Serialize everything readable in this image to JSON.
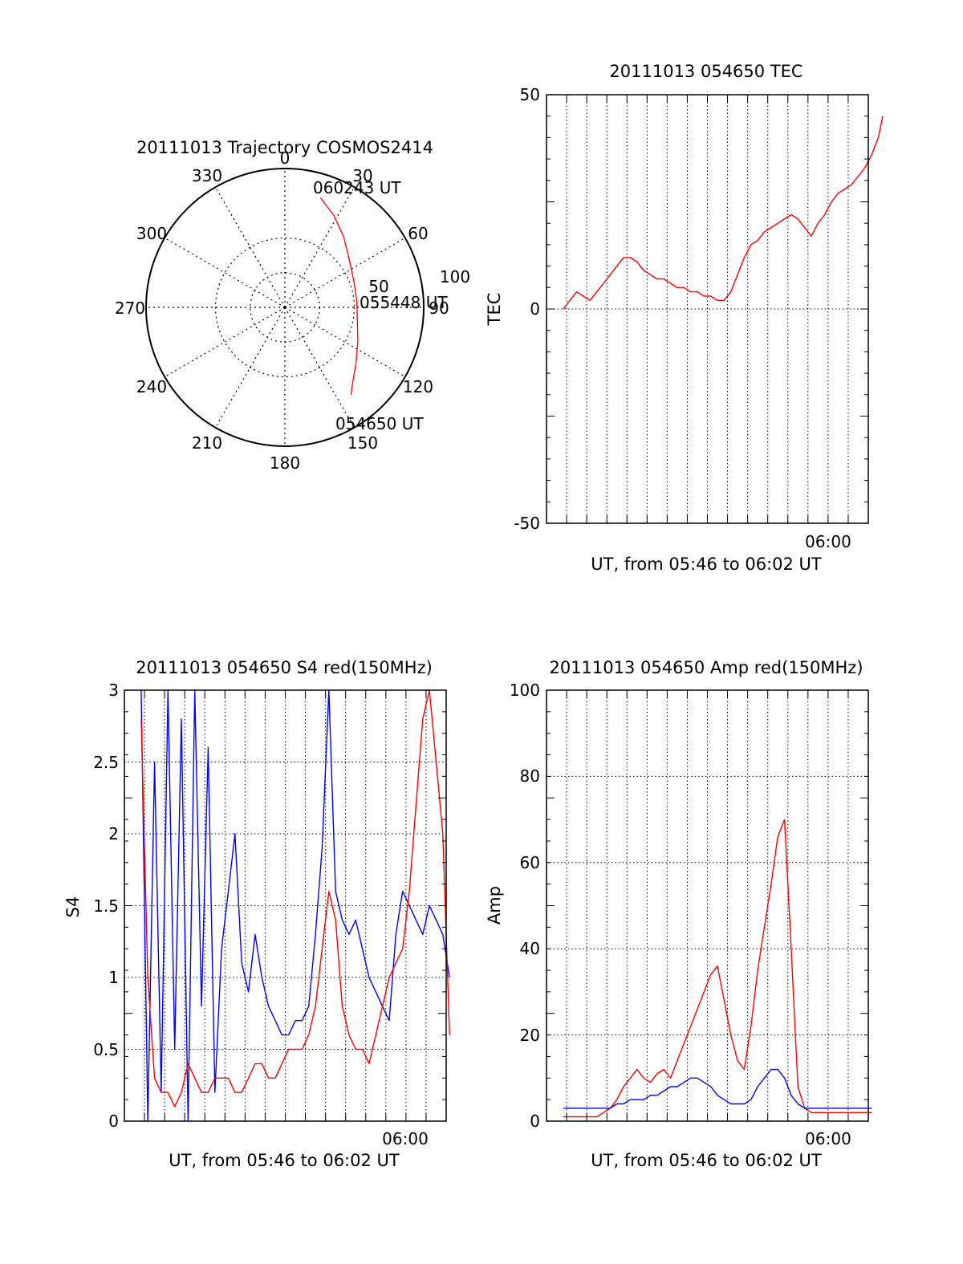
{
  "colors": {
    "red_series": "#ff0000",
    "blue_series": "#0000ff",
    "axes": "#000000",
    "grid": "#000000"
  },
  "chart_data": [
    {
      "type": "polar",
      "title": "20111013 Trajectory COSMOS2414",
      "theta_labels": [
        "0",
        "30",
        "60",
        "90",
        "120",
        "150",
        "180",
        "210",
        "240",
        "270",
        "300",
        "330"
      ],
      "radius_labels": [
        "50",
        "100"
      ],
      "grid": true,
      "annotations": [
        "060243 UT",
        "055448 UT",
        "054650 UT"
      ],
      "series": [
        {
          "color": "red",
          "points": [
            {
              "azimuth": 18,
              "radius": 83
            },
            {
              "azimuth": 28,
              "radius": 75
            },
            {
              "azimuth": 40,
              "radius": 66
            },
            {
              "azimuth": 55,
              "radius": 57
            },
            {
              "azimuth": 70,
              "radius": 53
            },
            {
              "azimuth": 85,
              "radius": 52
            },
            {
              "azimuth": 100,
              "radius": 53
            },
            {
              "azimuth": 115,
              "radius": 58
            },
            {
              "azimuth": 128,
              "radius": 65
            },
            {
              "azimuth": 138,
              "radius": 73
            },
            {
              "azimuth": 143,
              "radius": 79
            }
          ]
        }
      ]
    },
    {
      "type": "line",
      "title": "20111013 054650 TEC",
      "xlabel": "UT, from 05:46 to 06:02 UT",
      "ylabel": "TEC",
      "xlim": [
        "05:46",
        "06:02"
      ],
      "ylim": [
        -50,
        50
      ],
      "yticks": [
        "50",
        "0",
        "-50"
      ],
      "xticks": [
        "06:00"
      ],
      "grid": true,
      "series": [
        {
          "color": "red",
          "x": [
            "05:46:50",
            "05:47:10",
            "05:47:30",
            "05:47:50",
            "05:48:10",
            "05:48:30",
            "05:48:50",
            "05:49:10",
            "05:49:30",
            "05:49:50",
            "05:50:10",
            "05:50:30",
            "05:50:50",
            "05:51:10",
            "05:51:30",
            "05:51:50",
            "05:52:10",
            "05:52:30",
            "05:52:50",
            "05:53:10",
            "05:53:30",
            "05:53:50",
            "05:54:10",
            "05:54:30",
            "05:54:50",
            "05:55:10",
            "05:55:30",
            "05:55:50",
            "05:56:10",
            "05:56:30",
            "05:56:50",
            "05:57:10",
            "05:57:30",
            "05:57:50",
            "05:58:10",
            "05:58:30",
            "05:58:50",
            "05:59:10",
            "05:59:30",
            "05:59:50",
            "06:00:10",
            "06:00:30",
            "06:00:50",
            "06:01:10",
            "06:01:30",
            "06:01:50",
            "06:02:10",
            "06:02:30",
            "06:02:43"
          ],
          "y": [
            0,
            2,
            4,
            3,
            2,
            4,
            6,
            8,
            10,
            12,
            12,
            11,
            9,
            8,
            7,
            7,
            6,
            5,
            5,
            4,
            4,
            3,
            3,
            2,
            2,
            4,
            8,
            12,
            15,
            16,
            18,
            19,
            20,
            21,
            22,
            21,
            19,
            17,
            20,
            22,
            25,
            27,
            28,
            29,
            31,
            33,
            36,
            40,
            45
          ]
        }
      ]
    },
    {
      "type": "line",
      "title": "20111013 054650 S4 red(150MHz)",
      "xlabel": "UT, from 05:46 to 06:02 UT",
      "ylabel": "S4",
      "xlim": [
        "05:46",
        "06:02"
      ],
      "ylim": [
        0,
        3
      ],
      "yticks": [
        "0",
        "0.5",
        "1",
        "1.5",
        "2",
        "2.5",
        "3"
      ],
      "xticks": [
        "06:00"
      ],
      "grid": true,
      "series": [
        {
          "color": "blue",
          "x": [
            "05:46:50",
            "05:47:10",
            "05:47:30",
            "05:47:50",
            "05:48:10",
            "05:48:30",
            "05:48:50",
            "05:49:10",
            "05:49:30",
            "05:49:50",
            "05:50:10",
            "05:50:30",
            "05:50:50",
            "05:51:10",
            "05:51:30",
            "05:51:50",
            "05:52:10",
            "05:52:30",
            "05:52:50",
            "05:53:10",
            "05:53:30",
            "05:53:50",
            "05:54:10",
            "05:54:30",
            "05:54:50",
            "05:55:10",
            "05:55:30",
            "05:55:50",
            "05:56:10",
            "05:56:30",
            "05:56:50",
            "05:57:10",
            "05:57:30",
            "05:57:50",
            "05:58:10",
            "05:58:30",
            "05:58:50",
            "05:59:10",
            "05:59:30",
            "05:59:50",
            "06:00:10",
            "06:00:30",
            "06:00:50",
            "06:01:10",
            "06:01:30",
            "06:01:50",
            "06:02:10"
          ],
          "y": [
            3.0,
            0,
            2.5,
            0.2,
            3.0,
            0.5,
            2.8,
            0,
            3.0,
            0.8,
            2.6,
            0.2,
            1.2,
            1.6,
            2.0,
            1.1,
            0.9,
            1.3,
            1.0,
            0.8,
            0.7,
            0.6,
            0.6,
            0.7,
            0.7,
            0.8,
            1.3,
            1.9,
            3.0,
            1.6,
            1.4,
            1.3,
            1.4,
            1.2,
            1.0,
            0.9,
            0.8,
            0.7,
            1.3,
            1.6,
            1.5,
            1.4,
            1.3,
            1.5,
            1.4,
            1.3,
            1.0
          ]
        },
        {
          "color": "red",
          "x": [
            "05:46:50",
            "05:47:10",
            "05:47:30",
            "05:47:50",
            "05:48:10",
            "05:48:30",
            "05:48:50",
            "05:49:10",
            "05:49:30",
            "05:49:50",
            "05:50:10",
            "05:50:30",
            "05:50:50",
            "05:51:10",
            "05:51:30",
            "05:51:50",
            "05:52:10",
            "05:52:30",
            "05:52:50",
            "05:53:10",
            "05:53:30",
            "05:53:50",
            "05:54:10",
            "05:54:30",
            "05:54:50",
            "05:55:10",
            "05:55:30",
            "05:55:50",
            "05:56:10",
            "05:56:30",
            "05:56:50",
            "05:57:10",
            "05:57:30",
            "05:57:50",
            "05:58:10",
            "05:58:30",
            "05:58:50",
            "05:59:10",
            "05:59:30",
            "05:59:50",
            "06:00:10",
            "06:00:30",
            "06:00:50",
            "06:01:10",
            "06:01:30",
            "06:01:50",
            "06:02:10"
          ],
          "y": [
            2.8,
            1.0,
            0.3,
            0.2,
            0.2,
            0.1,
            0.2,
            0.4,
            0.3,
            0.2,
            0.2,
            0.3,
            0.3,
            0.3,
            0.2,
            0.2,
            0.3,
            0.4,
            0.4,
            0.3,
            0.3,
            0.4,
            0.5,
            0.5,
            0.5,
            0.6,
            0.8,
            1.2,
            1.6,
            1.4,
            0.8,
            0.6,
            0.5,
            0.5,
            0.4,
            0.6,
            0.8,
            1.0,
            1.1,
            1.2,
            1.6,
            2.2,
            2.8,
            3.0,
            2.5,
            2.0,
            0.6
          ]
        }
      ]
    },
    {
      "type": "line",
      "title": "20111013 054650 Amp red(150MHz)",
      "xlabel": "UT, from 05:46 to 06:02 UT",
      "ylabel": "Amp",
      "xlim": [
        "05:46",
        "06:02"
      ],
      "ylim": [
        0,
        100
      ],
      "yticks": [
        "0",
        "20",
        "40",
        "60",
        "80",
        "100"
      ],
      "xticks": [
        "06:00"
      ],
      "grid": true,
      "series": [
        {
          "color": "red",
          "x": [
            "05:46:50",
            "05:47:10",
            "05:47:30",
            "05:47:50",
            "05:48:10",
            "05:48:30",
            "05:48:50",
            "05:49:10",
            "05:49:30",
            "05:49:50",
            "05:50:10",
            "05:50:30",
            "05:50:50",
            "05:51:10",
            "05:51:30",
            "05:51:50",
            "05:52:10",
            "05:52:30",
            "05:52:50",
            "05:53:10",
            "05:53:30",
            "05:53:50",
            "05:54:10",
            "05:54:30",
            "05:54:50",
            "05:55:10",
            "05:55:30",
            "05:55:50",
            "05:56:10",
            "05:56:30",
            "05:56:50",
            "05:57:10",
            "05:57:30",
            "05:57:50",
            "05:58:10",
            "05:58:30",
            "05:58:50",
            "05:59:10",
            "05:59:30",
            "05:59:50",
            "06:00:10",
            "06:00:30",
            "06:00:50",
            "06:01:10",
            "06:01:30",
            "06:01:50",
            "06:02:10"
          ],
          "y": [
            1,
            1,
            1,
            1,
            1,
            1,
            2,
            3,
            5,
            8,
            10,
            12,
            10,
            9,
            11,
            12,
            10,
            14,
            18,
            22,
            26,
            30,
            34,
            36,
            28,
            20,
            14,
            12,
            22,
            35,
            45,
            55,
            66,
            70,
            40,
            8,
            3,
            2,
            2,
            2,
            2,
            2,
            2,
            2,
            2,
            2,
            2
          ]
        },
        {
          "color": "blue",
          "x": [
            "05:46:50",
            "05:47:10",
            "05:47:30",
            "05:47:50",
            "05:48:10",
            "05:48:30",
            "05:48:50",
            "05:49:10",
            "05:49:30",
            "05:49:50",
            "05:50:10",
            "05:50:30",
            "05:50:50",
            "05:51:10",
            "05:51:30",
            "05:51:50",
            "05:52:10",
            "05:52:30",
            "05:52:50",
            "05:53:10",
            "05:53:30",
            "05:53:50",
            "05:54:10",
            "05:54:30",
            "05:54:50",
            "05:55:10",
            "05:55:30",
            "05:55:50",
            "05:56:10",
            "05:56:30",
            "05:56:50",
            "05:57:10",
            "05:57:30",
            "05:57:50",
            "05:58:10",
            "05:58:30",
            "05:58:50",
            "05:59:10",
            "05:59:30",
            "05:59:50",
            "06:00:10",
            "06:00:30",
            "06:00:50",
            "06:01:10",
            "06:01:30",
            "06:01:50",
            "06:02:10"
          ],
          "y": [
            3,
            3,
            3,
            3,
            3,
            3,
            3,
            3,
            4,
            4,
            5,
            5,
            5,
            6,
            6,
            7,
            8,
            8,
            9,
            10,
            10,
            9,
            8,
            6,
            5,
            4,
            4,
            4,
            5,
            8,
            10,
            12,
            12,
            10,
            6,
            4,
            3,
            3,
            3,
            3,
            3,
            3,
            3,
            3,
            3,
            3,
            3
          ]
        }
      ]
    }
  ]
}
